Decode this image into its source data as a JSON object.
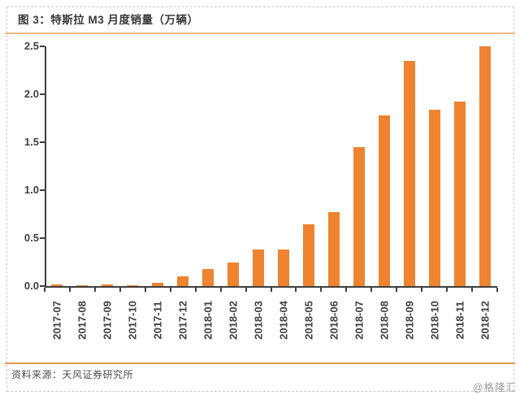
{
  "page": {
    "title": "图 3：特斯拉 M3 月度销量（万辆）",
    "source": "资料来源：天风证券研究所",
    "watermark": "@格隆汇"
  },
  "colors": {
    "bar": "#ee8330",
    "axis": "#3f3f3f",
    "title_rule": "#ecbb82",
    "footer_rule": "#e79a54",
    "label_text": "#404040",
    "watermark_text": "#9b9b9b"
  },
  "chart_data": {
    "type": "bar",
    "title": "特斯拉 M3 月度销量（万辆）",
    "xlabel": "",
    "ylabel": "",
    "grid": false,
    "legend": "none",
    "ylim": [
      0,
      2.5
    ],
    "yticks": [
      "0.0",
      "0.5",
      "1.0",
      "1.5",
      "2.0",
      "2.5"
    ],
    "categories": [
      "2017-07",
      "2017-08",
      "2017-09",
      "2017-10",
      "2017-11",
      "2017-12",
      "2018-01",
      "2018-02",
      "2018-03",
      "2018-04",
      "2018-05",
      "2018-06",
      "2018-07",
      "2018-08",
      "2018-09",
      "2018-10",
      "2018-11",
      "2018-12"
    ],
    "values": [
      0.015,
      0.005,
      0.015,
      0.005,
      0.035,
      0.1,
      0.18,
      0.25,
      0.38,
      0.38,
      0.64,
      0.77,
      1.45,
      1.78,
      2.35,
      1.84,
      1.92,
      2.5
    ]
  }
}
